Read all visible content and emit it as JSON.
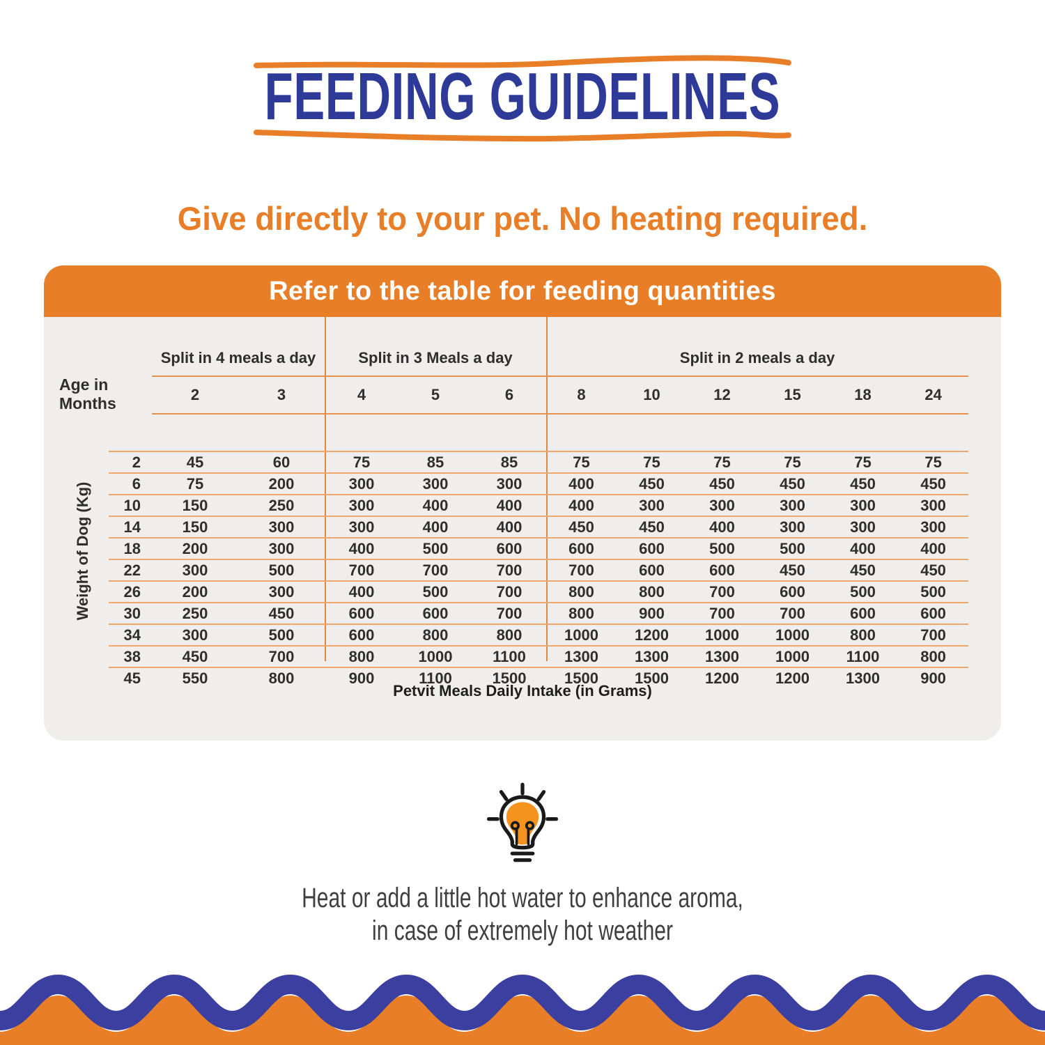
{
  "title": "FEEDING GUIDELINES",
  "subtitle": "Give directly to your pet. No heating required.",
  "table": {
    "header": "Refer to the table for feeding quantities",
    "corner_label": "Age in Months",
    "row_axis_label": "Weight of Dog (Kg)",
    "caption": "Petvit Meals Daily Intake (in Grams)",
    "groups": [
      {
        "label": "Split in 4 meals a day",
        "ages": [
          "2",
          "3"
        ]
      },
      {
        "label": "Split in 3 Meals a day",
        "ages": [
          "4",
          "5",
          "6"
        ]
      },
      {
        "label": "Split in 2 meals a day",
        "ages": [
          "8",
          "10",
          "12",
          "15",
          "18",
          "24"
        ]
      }
    ],
    "weights": [
      "2",
      "6",
      "10",
      "14",
      "18",
      "22",
      "26",
      "30",
      "34",
      "38",
      "45"
    ],
    "rows": [
      [
        "45",
        "60",
        "75",
        "85",
        "85",
        "75",
        "75",
        "75",
        "75",
        "75",
        "75"
      ],
      [
        "75",
        "200",
        "300",
        "300",
        "300",
        "400",
        "450",
        "450",
        "450",
        "450",
        "450"
      ],
      [
        "150",
        "250",
        "300",
        "400",
        "400",
        "400",
        "300",
        "300",
        "300",
        "300",
        "300"
      ],
      [
        "150",
        "300",
        "300",
        "400",
        "400",
        "450",
        "450",
        "400",
        "300",
        "300",
        "300"
      ],
      [
        "200",
        "300",
        "400",
        "500",
        "600",
        "600",
        "600",
        "500",
        "500",
        "400",
        "400"
      ],
      [
        "300",
        "500",
        "700",
        "700",
        "700",
        "700",
        "600",
        "600",
        "450",
        "450",
        "450"
      ],
      [
        "200",
        "300",
        "400",
        "500",
        "700",
        "800",
        "800",
        "700",
        "600",
        "500",
        "500"
      ],
      [
        "250",
        "450",
        "600",
        "600",
        "700",
        "800",
        "900",
        "700",
        "700",
        "600",
        "600"
      ],
      [
        "300",
        "500",
        "600",
        "800",
        "800",
        "1000",
        "1200",
        "1000",
        "1000",
        "800",
        "700"
      ],
      [
        "450",
        "700",
        "800",
        "1000",
        "1100",
        "1300",
        "1300",
        "1300",
        "1000",
        "1100",
        "800"
      ],
      [
        "550",
        "800",
        "900",
        "1100",
        "1500",
        "1500",
        "1500",
        "1200",
        "1200",
        "1300",
        "900"
      ]
    ]
  },
  "tip": {
    "icon": "lightbulb-icon",
    "line1": "Heat or add a little hot water to enhance aroma,",
    "line2": "in case of extremely hot weather"
  },
  "colors": {
    "orange": "#E87E27",
    "bulb_orange": "#F6921E",
    "title_blue": "#2E3A97",
    "wave_blue": "#3B3FA0",
    "table_bg": "#EFEEEC",
    "grid_line": "#F0A76B",
    "grid_line_strong": "#E0873B",
    "text_dark": "#2E2E2E",
    "tip_text": "#3F3F3F"
  }
}
